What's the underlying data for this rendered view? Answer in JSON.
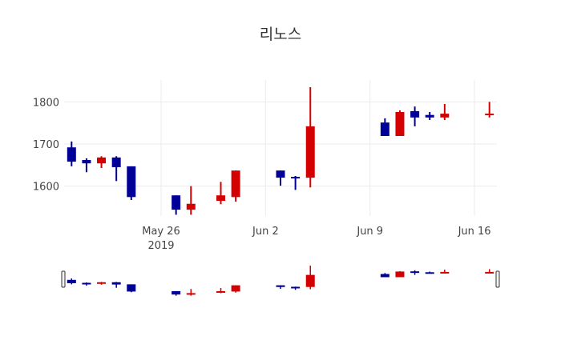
{
  "chart_data": {
    "type": "candlestick",
    "title": "리노스",
    "xlabel": "",
    "ylabel": "",
    "x_ticks": [
      {
        "date": "2019-05-26",
        "label": "May 26",
        "sublabel": "2019"
      },
      {
        "date": "2019-06-02",
        "label": "Jun 2",
        "sublabel": ""
      },
      {
        "date": "2019-06-09",
        "label": "Jun 9",
        "sublabel": ""
      },
      {
        "date": "2019-06-16",
        "label": "Jun 16",
        "sublabel": ""
      }
    ],
    "y_ticks": [
      1600,
      1700,
      1800
    ],
    "ylim": [
      1529,
      1852
    ],
    "xlim": [
      "2019-05-19 12:00",
      "2019-06-17 12:00"
    ],
    "grid": true,
    "rangeslider": true,
    "increasing_color": "#d40000",
    "decreasing_color": "#000099",
    "candles": [
      {
        "date": "2019-05-20",
        "open": 1692,
        "high": 1706,
        "low": 1647,
        "close": 1658
      },
      {
        "date": "2019-05-21",
        "open": 1662,
        "high": 1666,
        "low": 1633,
        "close": 1654
      },
      {
        "date": "2019-05-22",
        "open": 1654,
        "high": 1671,
        "low": 1643,
        "close": 1668
      },
      {
        "date": "2019-05-23",
        "open": 1668,
        "high": 1671,
        "low": 1612,
        "close": 1645
      },
      {
        "date": "2019-05-24",
        "open": 1647,
        "high": 1647,
        "low": 1567,
        "close": 1574
      },
      {
        "date": "2019-05-27",
        "open": 1578,
        "high": 1578,
        "low": 1532,
        "close": 1544
      },
      {
        "date": "2019-05-28",
        "open": 1544,
        "high": 1600,
        "low": 1532,
        "close": 1558
      },
      {
        "date": "2019-05-30",
        "open": 1565,
        "high": 1610,
        "low": 1557,
        "close": 1578
      },
      {
        "date": "2019-05-31",
        "open": 1574,
        "high": 1637,
        "low": 1563,
        "close": 1637
      },
      {
        "date": "2019-06-03",
        "open": 1637,
        "high": 1637,
        "low": 1601,
        "close": 1620
      },
      {
        "date": "2019-06-04",
        "open": 1622,
        "high": 1624,
        "low": 1591,
        "close": 1620
      },
      {
        "date": "2019-06-05",
        "open": 1620,
        "high": 1835,
        "low": 1597,
        "close": 1742
      },
      {
        "date": "2019-06-10",
        "open": 1751,
        "high": 1761,
        "low": 1719,
        "close": 1719
      },
      {
        "date": "2019-06-11",
        "open": 1719,
        "high": 1780,
        "low": 1719,
        "close": 1776
      },
      {
        "date": "2019-06-12",
        "open": 1778,
        "high": 1789,
        "low": 1742,
        "close": 1763
      },
      {
        "date": "2019-06-13",
        "open": 1769,
        "high": 1776,
        "low": 1757,
        "close": 1763
      },
      {
        "date": "2019-06-14",
        "open": 1763,
        "high": 1795,
        "low": 1757,
        "close": 1772
      },
      {
        "date": "2019-06-17",
        "open": 1769,
        "high": 1800,
        "low": 1763,
        "close": 1772
      }
    ]
  }
}
